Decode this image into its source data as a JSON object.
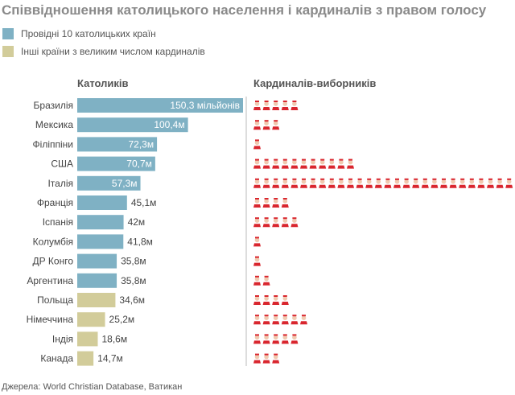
{
  "chart_data": {
    "type": "bar",
    "title": "Співвідношення католицького населення і кардиналів з правом голосу",
    "legend": [
      {
        "label": "Провідні 10 католицьких країн",
        "color": "#7fb1c4"
      },
      {
        "label": "Інші країни з великим числом кардиналів",
        "color": "#d2cc9a"
      }
    ],
    "columns": {
      "catholics": "Католиків",
      "cardinals": "Кардиналів-виборників"
    },
    "categories": [
      "Бразилія",
      "Мексика",
      "Філіппіни",
      "США",
      "Італія",
      "Франція",
      "Іспанія",
      "Колумбія",
      "ДР Конго",
      "Аргентина",
      "Польща",
      "Німеччина",
      "Індія",
      "Канада"
    ],
    "catholics_millions": [
      150.3,
      100.4,
      72.3,
      70.7,
      57.3,
      45.1,
      42,
      41.8,
      35.8,
      35.8,
      34.6,
      25.2,
      18.6,
      14.7
    ],
    "value_labels": [
      "150,3 мільйонів",
      "100,4м",
      "72,3м",
      "70,7м",
      "57,3м",
      "45,1м",
      "42м",
      "41,8м",
      "35,8м",
      "35,8м",
      "34,6м",
      "25,2м",
      "18,6м",
      "14,7м"
    ],
    "group": [
      "top10",
      "top10",
      "top10",
      "top10",
      "top10",
      "top10",
      "top10",
      "top10",
      "top10",
      "top10",
      "other",
      "other",
      "other",
      "other"
    ],
    "cardinal_electors": [
      5,
      3,
      1,
      11,
      28,
      4,
      5,
      1,
      1,
      2,
      4,
      6,
      5,
      3
    ],
    "cardinal_icon": "cardinal-person-icon",
    "cardinal_color": "#d9262e"
  },
  "source": "Джерела: World Christian Database, Ватикан"
}
